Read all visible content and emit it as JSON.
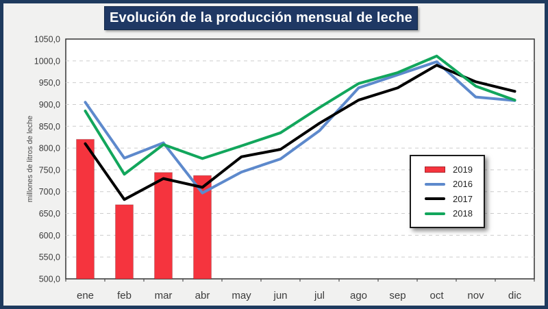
{
  "title": "Evolución de la producción mensual de leche",
  "colors": {
    "frame_border": "#1e3a5e",
    "page_background": "#f1f1f0",
    "title_background": "#1f3864",
    "title_text": "#ffffff",
    "plot_background": "#ffffff",
    "plot_border": "#333333",
    "gridline": "#cccccc",
    "axis_text": "#3b3b3b"
  },
  "chart_data": {
    "type": "bar+line",
    "title": "Evolución de la producción mensual de leche",
    "categories": [
      "ene",
      "feb",
      "mar",
      "abr",
      "may",
      "jun",
      "jul",
      "ago",
      "sep",
      "oct",
      "nov",
      "dic"
    ],
    "xlabel": "",
    "ylabel": "millones de litros de leche",
    "ylim": [
      500,
      1050
    ],
    "ytick_step": 50,
    "ytick_decimal_separator": ",",
    "grid": "horizontal-dashed",
    "legend_position": "middle-right-box",
    "series": [
      {
        "name": "2019",
        "type": "bar",
        "color": "#f5343e",
        "values": [
          820,
          670,
          744,
          737,
          null,
          null,
          null,
          null,
          null,
          null,
          null,
          null
        ]
      },
      {
        "name": "2016",
        "type": "line",
        "color": "#5d89cc",
        "values": [
          905,
          777,
          812,
          697,
          745,
          775,
          840,
          938,
          968,
          998,
          917,
          909
        ]
      },
      {
        "name": "2017",
        "type": "line",
        "color": "#000000",
        "values": [
          810,
          682,
          730,
          710,
          780,
          797,
          857,
          910,
          938,
          990,
          952,
          930
        ]
      },
      {
        "name": "2018",
        "type": "line",
        "color": "#12a65c",
        "values": [
          885,
          740,
          808,
          776,
          805,
          835,
          893,
          948,
          973,
          1011,
          942,
          910
        ]
      }
    ]
  }
}
